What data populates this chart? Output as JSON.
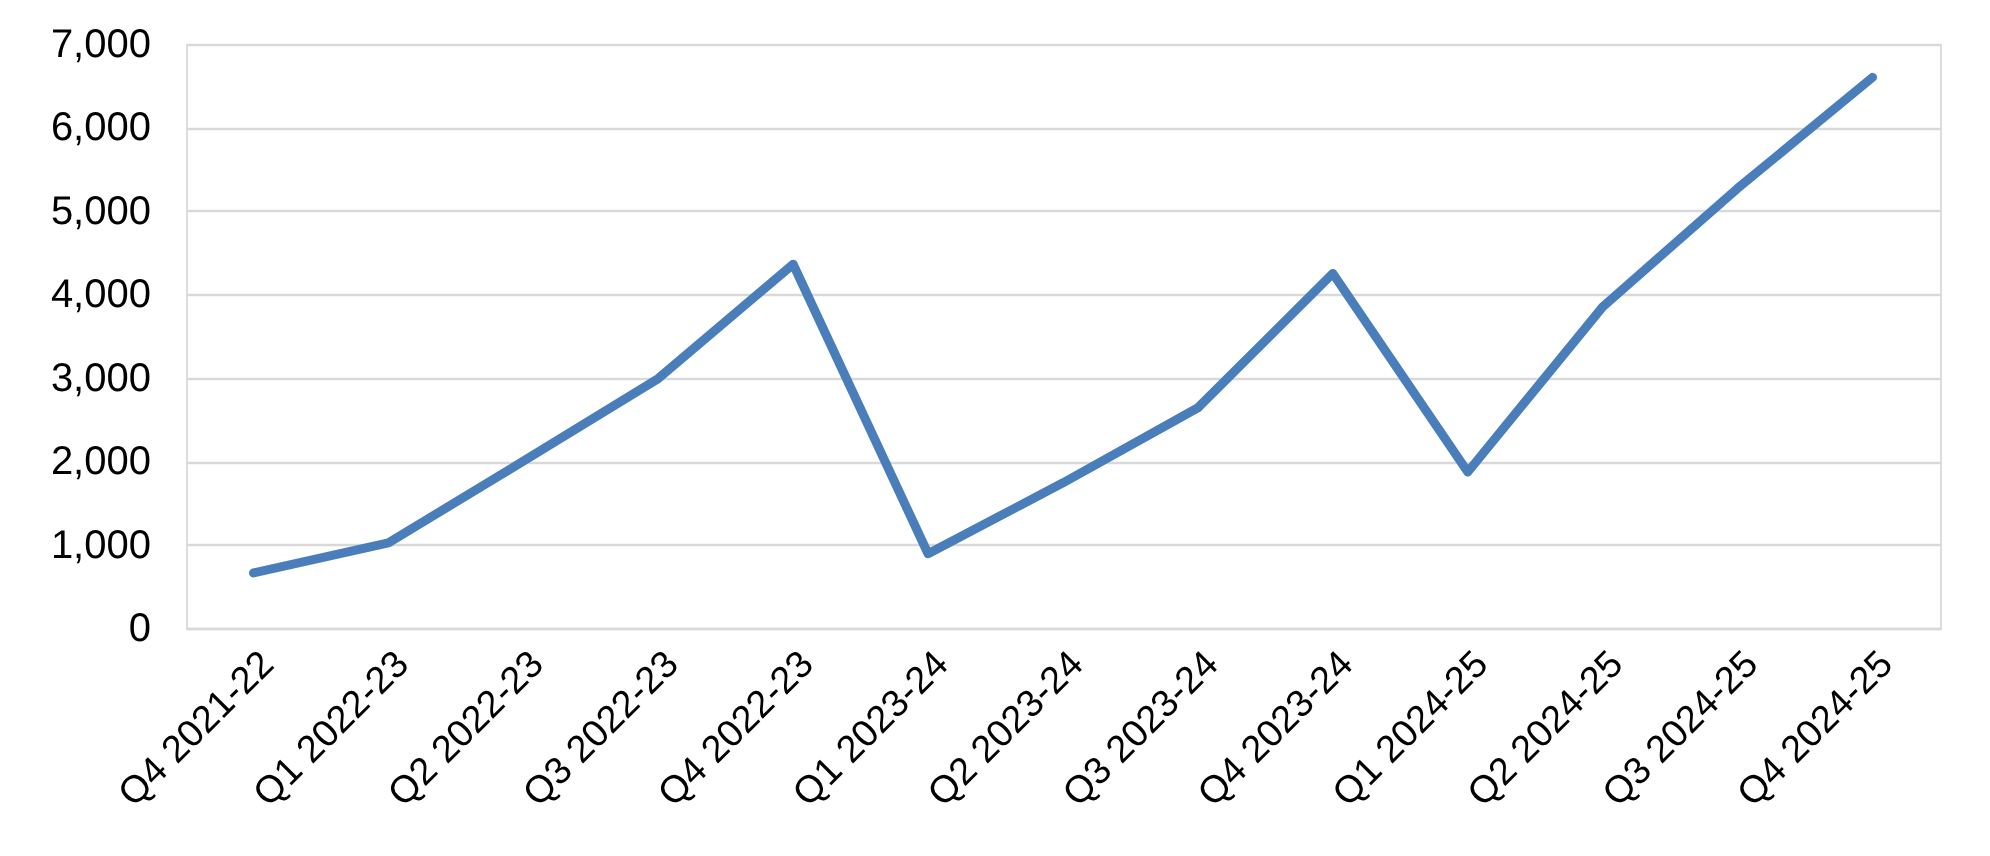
{
  "chart_data": {
    "type": "line",
    "categories": [
      "Q4 2021-22",
      "Q1 2022-23",
      "Q2 2022-23",
      "Q3 2022-23",
      "Q4 2022-23",
      "Q1 2023-24",
      "Q2 2023-24",
      "Q3 2023-24",
      "Q4 2023-24",
      "Q1 2024-25",
      "Q2 2024-25",
      "Q3 2024-25",
      "Q4 2024-25"
    ],
    "values": [
      660,
      1020,
      2000,
      2990,
      4360,
      890,
      1740,
      2640,
      4250,
      1870,
      3850,
      5270,
      6600
    ],
    "color": "#4a7ebb",
    "ylim": [
      0,
      7000
    ],
    "yticks": [
      0,
      {
        "value": 1000,
        "label": "1,000"
      },
      {
        "value": 2000,
        "label": "2,000"
      },
      {
        "value": 3000,
        "label": "3,000"
      },
      {
        "value": 4000,
        "label": "4,000"
      },
      {
        "value": 5000,
        "label": "5,000"
      },
      {
        "value": 6000,
        "label": "6,000"
      },
      {
        "value": 7000,
        "label": "7,000"
      }
    ],
    "grid": "y"
  }
}
